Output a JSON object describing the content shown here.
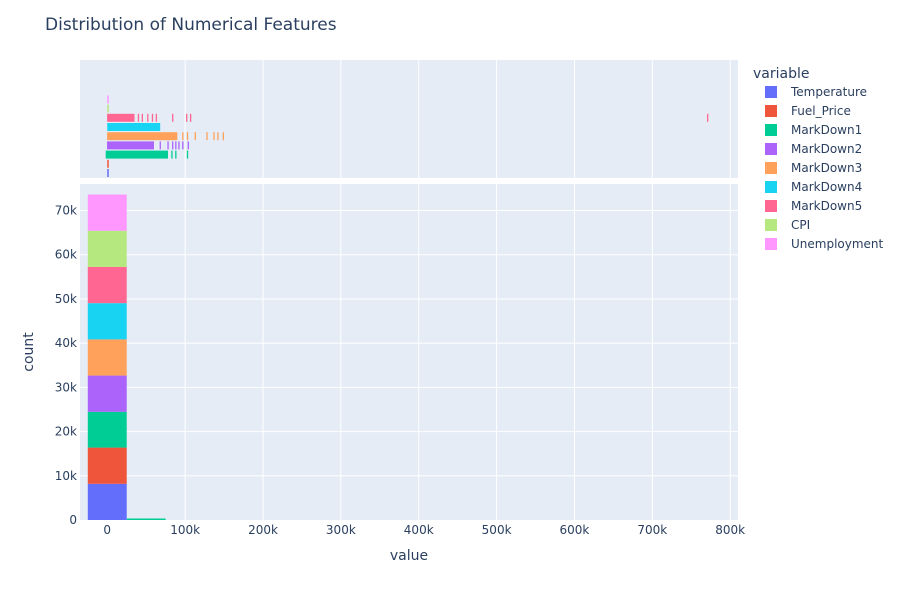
{
  "chart_data": {
    "type": "bar",
    "title": "Distribution of Numerical Features",
    "xlabel": "value",
    "ylabel": "count",
    "xlim": [
      -35000,
      810000
    ],
    "ylim": [
      0,
      76000
    ],
    "x_ticks": [
      0,
      100000,
      200000,
      300000,
      400000,
      500000,
      600000,
      700000,
      800000
    ],
    "x_tick_labels": [
      "0",
      "100k",
      "200k",
      "300k",
      "400k",
      "500k",
      "600k",
      "700k",
      "800k"
    ],
    "y_ticks": [
      0,
      10000,
      20000,
      30000,
      40000,
      50000,
      60000,
      70000
    ],
    "y_tick_labels": [
      "0",
      "10k",
      "20k",
      "30k",
      "40k",
      "50k",
      "60k",
      "70k"
    ],
    "histogram_bins": [
      [
        -25000,
        25000
      ],
      [
        25000,
        75000
      ]
    ],
    "legend_title": "variable",
    "legend_position": "right",
    "grid": true,
    "series": [
      {
        "name": "Temperature",
        "color": "#636efa",
        "counts": [
          8190,
          0
        ],
        "rug": [
          [
            -7,
            101
          ]
        ]
      },
      {
        "name": "Fuel_Price",
        "color": "#EF553B",
        "counts": [
          8190,
          0
        ],
        "rug": [
          [
            2,
            5
          ]
        ]
      },
      {
        "name": "MarkDown1",
        "color": "#00cc96",
        "counts": [
          8100,
          90
        ],
        "rug": [
          [
            -2000,
            78000
          ],
          [
            83000
          ],
          [
            88000
          ],
          [
            103000
          ]
        ]
      },
      {
        "name": "MarkDown2",
        "color": "#ab63fa",
        "counts": [
          8190,
          0
        ],
        "rug": [
          [
            -300,
            60000
          ],
          [
            68000
          ],
          [
            78000
          ],
          [
            84000
          ],
          [
            88000
          ],
          [
            92000
          ],
          [
            97000
          ],
          [
            104000
          ]
        ]
      },
      {
        "name": "MarkDown3",
        "color": "#FFA15A",
        "counts": [
          8190,
          0
        ],
        "rug": [
          [
            -200,
            90000
          ],
          [
            97000
          ],
          [
            103000
          ],
          [
            113000
          ],
          [
            128000
          ],
          [
            137000
          ],
          [
            142000
          ],
          [
            149000
          ]
        ]
      },
      {
        "name": "MarkDown4",
        "color": "#19d3f3",
        "counts": [
          8190,
          0
        ],
        "rug": [
          [
            0,
            68000
          ]
        ]
      },
      {
        "name": "MarkDown5",
        "color": "#FF6692",
        "counts": [
          8190,
          0
        ],
        "rug": [
          [
            -200,
            35000
          ],
          [
            40000
          ],
          [
            45000
          ],
          [
            52000
          ],
          [
            58000
          ],
          [
            63000
          ],
          [
            84000
          ],
          [
            102000
          ],
          [
            107000
          ],
          [
            771000
          ]
        ]
      },
      {
        "name": "CPI",
        "color": "#B6E880",
        "counts": [
          8190,
          0
        ],
        "rug": [
          [
            126,
            229
          ]
        ]
      },
      {
        "name": "Unemployment",
        "color": "#FF97FF",
        "counts": [
          8190,
          0
        ],
        "rug": [
          [
            3,
            14
          ]
        ]
      }
    ]
  }
}
